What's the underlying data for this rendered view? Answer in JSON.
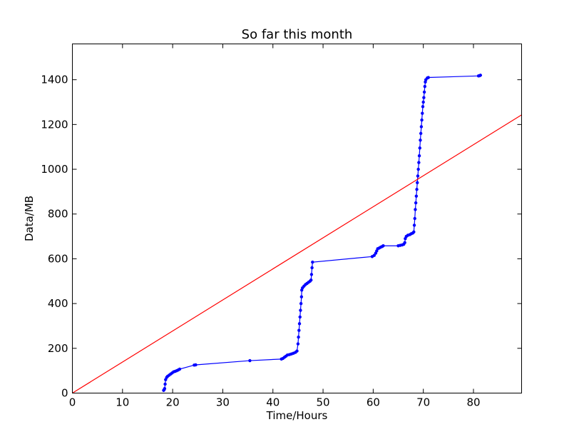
{
  "chart_data": {
    "type": "line",
    "title": "So far this month",
    "xlabel": "Time/Hours",
    "ylabel": "Data/MB",
    "xlim": [
      0,
      89.6
    ],
    "ylim": [
      0,
      1560
    ],
    "xticks": [
      0,
      10,
      20,
      30,
      40,
      50,
      60,
      70,
      80
    ],
    "yticks": [
      0,
      200,
      400,
      600,
      800,
      1000,
      1200,
      1400
    ],
    "grid": false,
    "series": [
      {
        "color": "#0000ff",
        "marker": "dot",
        "points": [
          [
            18.2,
            12
          ],
          [
            18.3,
            15
          ],
          [
            18.4,
            20
          ],
          [
            18.5,
            40
          ],
          [
            18.6,
            60
          ],
          [
            18.8,
            70
          ],
          [
            19.0,
            75
          ],
          [
            19.3,
            80
          ],
          [
            19.6,
            85
          ],
          [
            19.9,
            90
          ],
          [
            20.2,
            95
          ],
          [
            20.5,
            97
          ],
          [
            20.8,
            100
          ],
          [
            21.1,
            103
          ],
          [
            21.4,
            107
          ],
          [
            24.3,
            125
          ],
          [
            24.6,
            126
          ],
          [
            35.4,
            145
          ],
          [
            41.7,
            152
          ],
          [
            42.0,
            155
          ],
          [
            42.3,
            160
          ],
          [
            42.6,
            165
          ],
          [
            42.9,
            170
          ],
          [
            43.3,
            172
          ],
          [
            43.7,
            175
          ],
          [
            44.1,
            178
          ],
          [
            44.5,
            182
          ],
          [
            44.8,
            188
          ],
          [
            45.0,
            220
          ],
          [
            45.1,
            250
          ],
          [
            45.2,
            280
          ],
          [
            45.3,
            310
          ],
          [
            45.4,
            340
          ],
          [
            45.5,
            370
          ],
          [
            45.6,
            400
          ],
          [
            45.7,
            430
          ],
          [
            45.75,
            460
          ],
          [
            45.9,
            470
          ],
          [
            46.2,
            478
          ],
          [
            46.5,
            485
          ],
          [
            46.8,
            490
          ],
          [
            47.1,
            495
          ],
          [
            47.4,
            500
          ],
          [
            47.6,
            505
          ],
          [
            47.7,
            530
          ],
          [
            47.8,
            560
          ],
          [
            47.9,
            585
          ],
          [
            59.8,
            610
          ],
          [
            60.2,
            615
          ],
          [
            60.5,
            625
          ],
          [
            60.7,
            635
          ],
          [
            60.9,
            645
          ],
          [
            61.2,
            648
          ],
          [
            61.5,
            652
          ],
          [
            61.8,
            655
          ],
          [
            62.0,
            658
          ],
          [
            65.0,
            658
          ],
          [
            65.4,
            660
          ],
          [
            65.8,
            662
          ],
          [
            66.1,
            665
          ],
          [
            66.3,
            672
          ],
          [
            66.4,
            690
          ],
          [
            66.6,
            700
          ],
          [
            66.9,
            705
          ],
          [
            67.3,
            708
          ],
          [
            67.6,
            712
          ],
          [
            67.9,
            715
          ],
          [
            68.1,
            720
          ],
          [
            68.2,
            750
          ],
          [
            68.3,
            780
          ],
          [
            68.4,
            820
          ],
          [
            68.5,
            850
          ],
          [
            68.6,
            880
          ],
          [
            68.7,
            910
          ],
          [
            68.8,
            940
          ],
          [
            68.9,
            970
          ],
          [
            69.0,
            1000
          ],
          [
            69.1,
            1030
          ],
          [
            69.2,
            1060
          ],
          [
            69.3,
            1095
          ],
          [
            69.4,
            1130
          ],
          [
            69.5,
            1160
          ],
          [
            69.6,
            1190
          ],
          [
            69.7,
            1220
          ],
          [
            69.8,
            1250
          ],
          [
            69.9,
            1280
          ],
          [
            70.0,
            1300
          ],
          [
            70.1,
            1320
          ],
          [
            70.2,
            1345
          ],
          [
            70.3,
            1370
          ],
          [
            70.4,
            1390
          ],
          [
            70.5,
            1400
          ],
          [
            70.8,
            1408
          ],
          [
            71.0,
            1410
          ],
          [
            81.0,
            1417
          ],
          [
            81.2,
            1418
          ],
          [
            81.4,
            1420
          ]
        ]
      },
      {
        "color": "#ff0000",
        "marker": "none",
        "points": [
          [
            0,
            0
          ],
          [
            89.6,
            1243
          ]
        ]
      }
    ]
  }
}
